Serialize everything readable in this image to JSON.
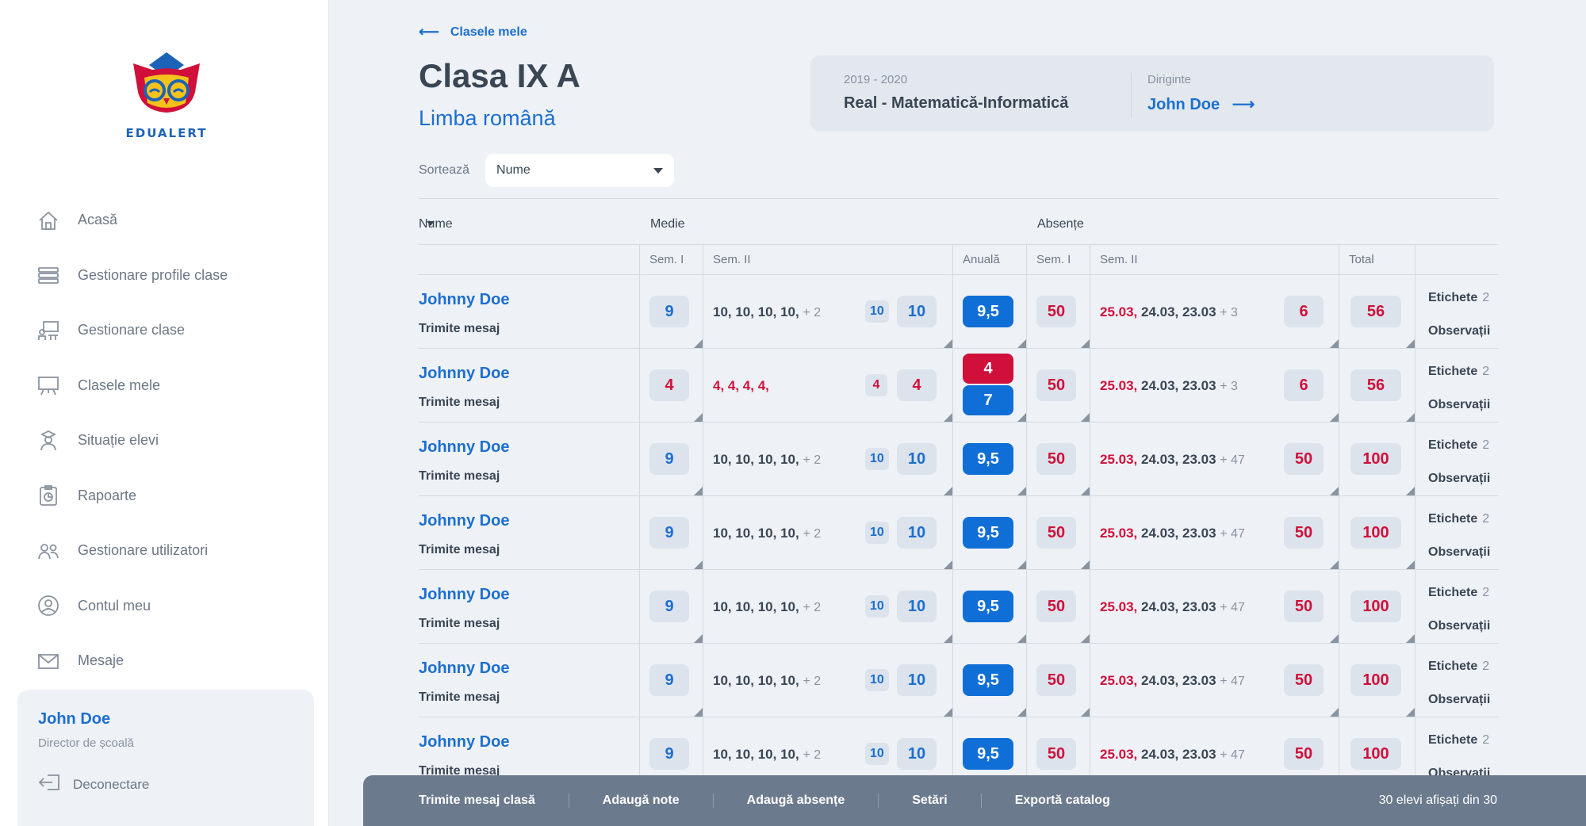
{
  "brand": {
    "name": "EDUALERT"
  },
  "sidebar": {
    "items": [
      {
        "label": "Acasă",
        "icon": "home-icon"
      },
      {
        "label": "Gestionare profile clase",
        "icon": "books-icon"
      },
      {
        "label": "Gestionare clase",
        "icon": "classroom-icon"
      },
      {
        "label": "Clasele mele",
        "icon": "board-icon"
      },
      {
        "label": "Situație elevi",
        "icon": "student-icon"
      },
      {
        "label": "Rapoarte",
        "icon": "report-icon"
      },
      {
        "label": "Gestionare utilizatori",
        "icon": "users-icon"
      },
      {
        "label": "Contul meu",
        "icon": "account-icon"
      },
      {
        "label": "Mesaje",
        "icon": "mail-icon"
      }
    ],
    "user": {
      "name": "John Doe",
      "role": "Director de școală",
      "logout": "Deconectare"
    }
  },
  "header": {
    "back": "Clasele mele",
    "title": "Clasa IX A",
    "subject": "Limba română",
    "year": "2019 - 2020",
    "profile": "Real - Matematică-Informatică",
    "diriginte_label": "Diriginte",
    "diriginte_name": "John Doe"
  },
  "sort": {
    "label": "Sortează",
    "value": "Nume"
  },
  "table": {
    "group_headers": {
      "name": "Nume",
      "medie": "Medie",
      "absente": "Absențe"
    },
    "col_headers": {
      "sem1": "Sem. I",
      "sem2": "Sem. II",
      "anuala": "Anuală",
      "abs_sem1": "Sem. I",
      "abs_sem2": "Sem. II",
      "total": "Total"
    },
    "rows": [
      {
        "name": "Johnny Doe",
        "msg": "Trimite mesaj",
        "sem1": "9",
        "grades": "10, 10, 10, 10,",
        "grades_more": "+ 2",
        "grade_count": "10",
        "sem2": "10",
        "anuala": "9,5",
        "abs1": "50",
        "date_red": "25.03,",
        "dates": "24.03, 23.03",
        "dates_more": "+ 3",
        "abs2": "6",
        "total": "56",
        "tags": "Etichete",
        "tags_count": "2",
        "obs": "Observații"
      },
      {
        "name": "Johnny Doe",
        "msg": "Trimite mesaj",
        "sem1": "4",
        "grades": "4, 4, 4, 4,",
        "grades_more": "",
        "grade_count": "4",
        "sem2": "4",
        "anuala": "4",
        "anuala2": "7",
        "abs1": "50",
        "date_red": "25.03,",
        "dates": "24.03, 23.03",
        "dates_more": "+ 3",
        "abs2": "6",
        "total": "56",
        "tags": "Etichete",
        "tags_count": "2",
        "obs": "Observații"
      },
      {
        "name": "Johnny Doe",
        "msg": "Trimite mesaj",
        "sem1": "9",
        "grades": "10, 10, 10, 10,",
        "grades_more": "+ 2",
        "grade_count": "10",
        "sem2": "10",
        "anuala": "9,5",
        "abs1": "50",
        "date_red": "25.03,",
        "dates": "24.03, 23.03",
        "dates_more": "+ 47",
        "abs2": "50",
        "total": "100",
        "tags": "Etichete",
        "tags_count": "2",
        "obs": "Observații"
      },
      {
        "name": "Johnny Doe",
        "msg": "Trimite mesaj",
        "sem1": "9",
        "grades": "10, 10, 10, 10,",
        "grades_more": "+ 2",
        "grade_count": "10",
        "sem2": "10",
        "anuala": "9,5",
        "abs1": "50",
        "date_red": "25.03,",
        "dates": "24.03, 23.03",
        "dates_more": "+ 47",
        "abs2": "50",
        "total": "100",
        "tags": "Etichete",
        "tags_count": "2",
        "obs": "Observații"
      },
      {
        "name": "Johnny Doe",
        "msg": "Trimite mesaj",
        "sem1": "9",
        "grades": "10, 10, 10, 10,",
        "grades_more": "+ 2",
        "grade_count": "10",
        "sem2": "10",
        "anuala": "9,5",
        "abs1": "50",
        "date_red": "25.03,",
        "dates": "24.03, 23.03",
        "dates_more": "+ 47",
        "abs2": "50",
        "total": "100",
        "tags": "Etichete",
        "tags_count": "2",
        "obs": "Observații"
      },
      {
        "name": "Johnny Doe",
        "msg": "Trimite mesaj",
        "sem1": "9",
        "grades": "10, 10, 10, 10,",
        "grades_more": "+ 2",
        "grade_count": "10",
        "sem2": "10",
        "anuala": "9,5",
        "abs1": "50",
        "date_red": "25.03,",
        "dates": "24.03, 23.03",
        "dates_more": "+ 47",
        "abs2": "50",
        "total": "100",
        "tags": "Etichete",
        "tags_count": "2",
        "obs": "Observații"
      },
      {
        "name": "Johnny Doe",
        "msg": "Trimite mesaj",
        "sem1": "9",
        "grades": "10, 10, 10, 10,",
        "grades_more": "+ 2",
        "grade_count": "10",
        "sem2": "10",
        "anuala": "9,5",
        "abs1": "50",
        "date_red": "25.03,",
        "dates": "24.03, 23.03",
        "dates_more": "+ 47",
        "abs2": "50",
        "total": "100",
        "tags": "Etichete",
        "tags_count": "2",
        "obs": "Observații"
      }
    ]
  },
  "bottombar": {
    "actions": [
      "Trimite mesaj clasă",
      "Adaugă note",
      "Adaugă absențe",
      "Setări",
      "Exportă catalog"
    ],
    "count": "30 elevi afișați din 30"
  },
  "colors": {
    "accent": "#1c6fcf",
    "danger": "#d0103a",
    "bar": "#6c7a8e"
  }
}
